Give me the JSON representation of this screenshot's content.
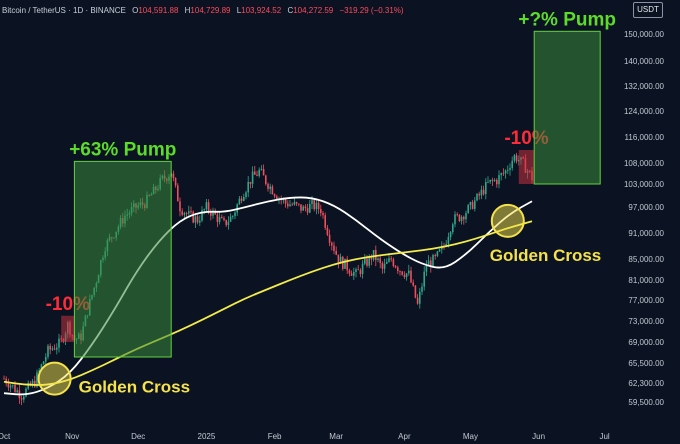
{
  "header": {
    "symbol": "Bitcoin / TetherUS · 1D · BINANCE",
    "open_label": "O",
    "open": "104,591.88",
    "high_label": "H",
    "high": "104,729.89",
    "low_label": "L",
    "low": "103,924.52",
    "close_label": "C",
    "close": "104,272.59",
    "change": "−319.29 (−0.31%)"
  },
  "currency_button": "USDT",
  "colors": {
    "background": "#0b1322",
    "up_candle": "#2fa88a",
    "down_candle": "#ef4f5d",
    "ma_fast": "#ffffff",
    "ma_slow": "#f3ec4a",
    "pump_box": "#3a8a3a",
    "dip_box": "#c8323e",
    "pump_text": "#5ddb2a",
    "dip_text": "#ff2b38",
    "cross_text": "#f5e14b"
  },
  "annotations": {
    "dip_left": "-10%",
    "pump_left": "+63% Pump",
    "dip_right": "-10%",
    "pump_right": "+?% Pump",
    "cross_left": "Golden Cross",
    "cross_right": "Golden Cross"
  },
  "chart_data": {
    "type": "candlestick",
    "title": "Bitcoin / TetherUS · 1D · BINANCE",
    "ylim": [
      57500,
      155000
    ],
    "y_ticks": [
      59500,
      62300,
      65500,
      69000,
      73000,
      77000,
      81000,
      85000,
      91000,
      97000,
      103000,
      108000,
      116000,
      124000,
      132000,
      140000,
      150000
    ],
    "y_tick_labels": [
      "59,500.00",
      "62,300.00",
      "65,500.00",
      "69,000.00",
      "73,000.00",
      "77,000.00",
      "81,000.00",
      "85,000.00",
      "91,000.00",
      "97,000.00",
      "103,000.00",
      "108,000.00",
      "116,000.00",
      "124,000.00",
      "132,000.00",
      "140,000.00",
      "150,000.00"
    ],
    "x_ticks": [
      {
        "label": "Oct",
        "day": 0
      },
      {
        "label": "Nov",
        "day": 31
      },
      {
        "label": "Dec",
        "day": 61
      },
      {
        "label": "2025",
        "day": 92
      },
      {
        "label": "Feb",
        "day": 123
      },
      {
        "label": "Mar",
        "day": 151
      },
      {
        "label": "Apr",
        "day": 182
      },
      {
        "label": "May",
        "day": 212
      },
      {
        "label": "Jun",
        "day": 243
      },
      {
        "label": "Jul",
        "day": 273
      }
    ],
    "price_path": [
      [
        0,
        63000
      ],
      [
        8,
        60500
      ],
      [
        14,
        62500
      ],
      [
        20,
        67500
      ],
      [
        26,
        69000
      ],
      [
        29,
        72300
      ],
      [
        32,
        69500
      ],
      [
        35,
        70000
      ],
      [
        38,
        75000
      ],
      [
        42,
        81000
      ],
      [
        46,
        88000
      ],
      [
        50,
        91000
      ],
      [
        55,
        95000
      ],
      [
        60,
        97000
      ],
      [
        64,
        98000
      ],
      [
        68,
        101000
      ],
      [
        72,
        104000
      ],
      [
        76,
        106000
      ],
      [
        80,
        97000
      ],
      [
        84,
        95000
      ],
      [
        88,
        94000
      ],
      [
        92,
        97000
      ],
      [
        96,
        95000
      ],
      [
        100,
        93000
      ],
      [
        104,
        95000
      ],
      [
        108,
        100000
      ],
      [
        112,
        104000
      ],
      [
        116,
        106000
      ],
      [
        120,
        103000
      ],
      [
        124,
        100000
      ],
      [
        128,
        98000
      ],
      [
        132,
        97500
      ],
      [
        136,
        96500
      ],
      [
        140,
        97500
      ],
      [
        144,
        96500
      ],
      [
        148,
        90000
      ],
      [
        152,
        85000
      ],
      [
        156,
        83500
      ],
      [
        160,
        82000
      ],
      [
        164,
        84000
      ],
      [
        168,
        86000
      ],
      [
        172,
        83000
      ],
      [
        176,
        85000
      ],
      [
        180,
        83000
      ],
      [
        184,
        82000
      ],
      [
        188,
        76000
      ],
      [
        192,
        84000
      ],
      [
        196,
        85000
      ],
      [
        200,
        88000
      ],
      [
        204,
        94000
      ],
      [
        208,
        95000
      ],
      [
        212,
        97000
      ],
      [
        216,
        100000
      ],
      [
        220,
        103000
      ],
      [
        224,
        104000
      ],
      [
        228,
        106000
      ],
      [
        232,
        110000
      ],
      [
        236,
        108000
      ],
      [
        240,
        104500
      ]
    ],
    "series": [
      {
        "x": [
          0,
          10,
          20,
          30,
          40,
          50,
          60,
          70,
          80,
          90,
          100,
          110,
          120,
          130,
          140,
          150,
          160,
          170,
          180,
          190,
          200,
          210,
          220,
          230,
          240
        ],
        "values": [
          60800,
          60500,
          61500,
          63800,
          68500,
          75000,
          82500,
          89000,
          94000,
          96000,
          95800,
          97000,
          98500,
          99500,
          99500,
          97500,
          94000,
          90000,
          86500,
          84000,
          83000,
          86000,
          91000,
          95500,
          98500
        ]
      },
      {
        "x": [
          0,
          10,
          20,
          30,
          40,
          50,
          60,
          70,
          80,
          90,
          100,
          110,
          120,
          130,
          140,
          150,
          160,
          170,
          180,
          190,
          200,
          210,
          220,
          230,
          240
        ],
        "values": [
          62500,
          62000,
          62000,
          62800,
          64300,
          66000,
          67800,
          69400,
          71200,
          73200,
          75300,
          77400,
          79200,
          81000,
          82600,
          84000,
          85000,
          85800,
          86400,
          87000,
          87800,
          89000,
          90600,
          92300,
          93700
        ]
      }
    ],
    "zones": [
      {
        "label": "-10%",
        "x0": 26,
        "x1": 32,
        "y0": 69000,
        "y1": 74000
      },
      {
        "label": "+63% Pump",
        "x0": 32,
        "x1": 76,
        "y0": 66500,
        "y1": 108500
      },
      {
        "label": "-10%",
        "x0": 234,
        "x1": 241,
        "y0": 103000,
        "y1": 112000
      },
      {
        "label": "+?% Pump",
        "x0": 241,
        "x1": 271,
        "y0": 103000,
        "y1": 151000
      }
    ],
    "markers": [
      {
        "label": "Golden Cross",
        "x": 23,
        "y": 63000
      },
      {
        "label": "Golden Cross",
        "x": 229,
        "y": 93800
      }
    ],
    "grid": false,
    "legend": "none"
  }
}
